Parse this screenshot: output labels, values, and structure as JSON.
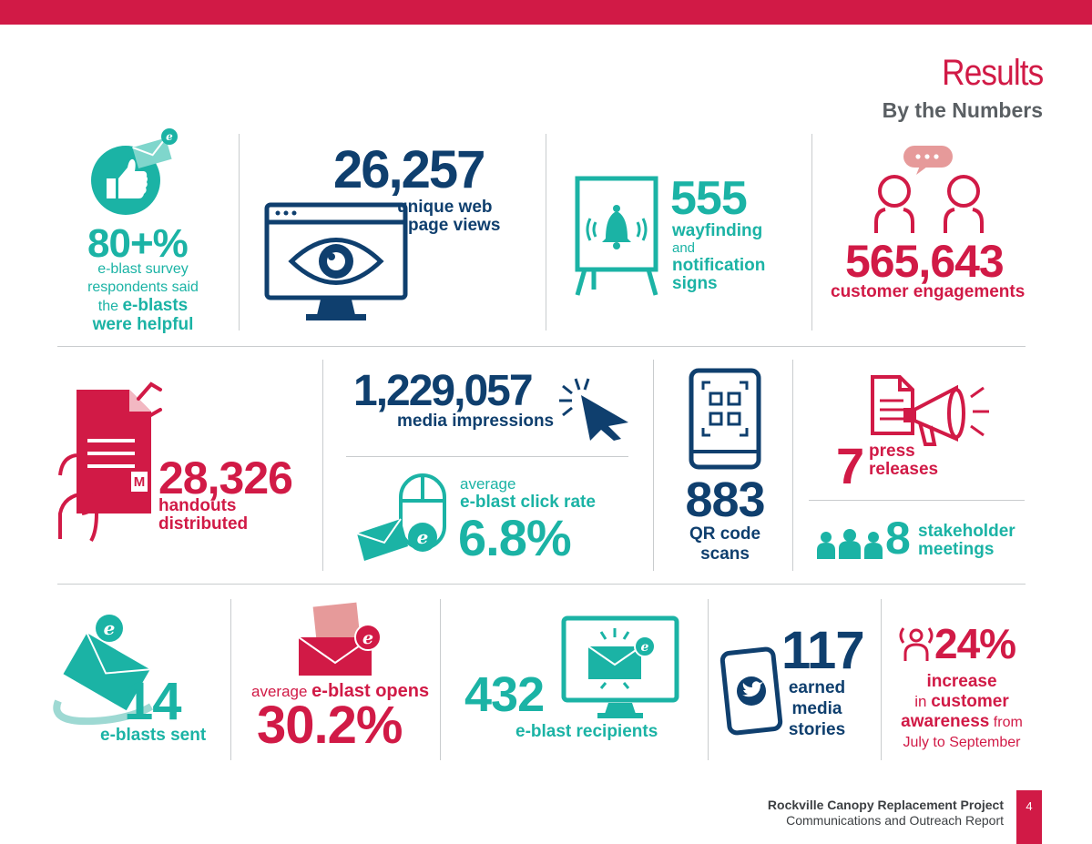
{
  "header": {
    "title": "Results",
    "subtitle": "By the Numbers"
  },
  "row1": {
    "helpful": {
      "value": "80+%",
      "line1": "e-blast survey",
      "line2": "respondents said",
      "line3_pre": "the ",
      "line3_em": "e-blasts",
      "line4": "were helpful"
    },
    "web": {
      "value": "26,257",
      "line1": "unique web",
      "line2": "page views"
    },
    "signs": {
      "value": "555",
      "line1": "wayfinding",
      "line2": "and",
      "line3": "notification",
      "line4": "signs"
    },
    "engage": {
      "value": "565,643",
      "label": "customer engagements"
    }
  },
  "row2": {
    "handouts": {
      "value": "28,326",
      "line1": "handouts",
      "line2": "distributed",
      "logo_text": "M"
    },
    "media": {
      "value": "1,229,057",
      "label": "media impressions"
    },
    "click": {
      "pre": "average",
      "label": "e-blast click rate",
      "value": "6.8%"
    },
    "qr": {
      "value": "883",
      "line1": "QR code",
      "line2": "scans"
    },
    "press": {
      "value": "7",
      "line1": "press",
      "line2": "releases"
    },
    "meetings": {
      "value": "8",
      "line1": "stakeholder",
      "line2": "meetings"
    }
  },
  "row3": {
    "sent": {
      "value": "14",
      "label": "e-blasts sent"
    },
    "opens": {
      "pre": "average ",
      "label": "e-blast opens",
      "value": "30.2%"
    },
    "recipients": {
      "value": "432",
      "label": "e-blast recipients"
    },
    "stories": {
      "value": "117",
      "line1": "earned",
      "line2": "media",
      "line3": "stories"
    },
    "awareness": {
      "value": "24%",
      "line1": "increase",
      "line2_pre": "in ",
      "line2_em": "customer",
      "line3_em": "awareness",
      "line3_post": " from",
      "line4": "July to September"
    }
  },
  "footer": {
    "project": "Rockville Canopy Replacement Project",
    "report": "Communications and Outreach Report",
    "page": "4"
  },
  "icons": {
    "email_badge_letter": "e"
  },
  "colors": {
    "red": "#d11a46",
    "teal": "#1bb3a5",
    "navy": "#0f3f6e",
    "pink": "#e69a9a",
    "gray": "#5a5f63"
  }
}
